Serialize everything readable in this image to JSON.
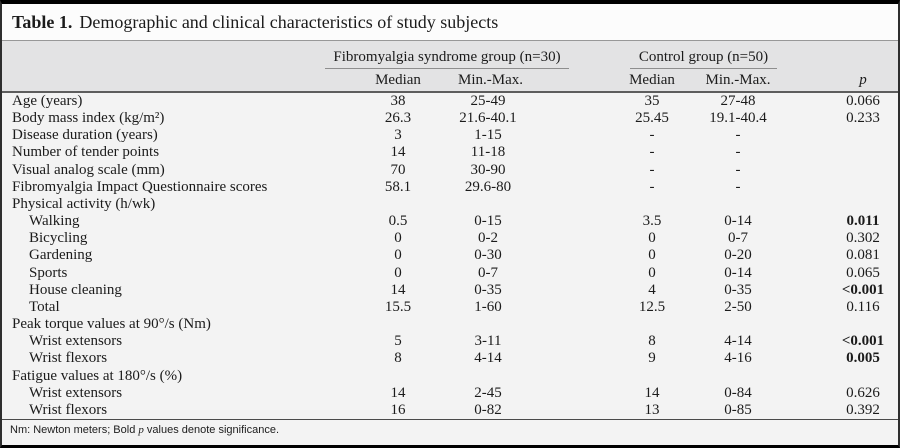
{
  "title": {
    "label": "Table 1.",
    "text": "Demographic and clinical characteristics of study subjects"
  },
  "header": {
    "group1": "Fibromyalgia syndrome group (n=30)",
    "group2": "Control group (n=50)",
    "sub": {
      "fms_median": "Median",
      "fms_minmax": "Min.-Max.",
      "ctrl_median": "Median",
      "ctrl_minmax": "Min.-Max.",
      "p": "p"
    }
  },
  "table": {
    "rows": [
      {
        "label": "Age (years)",
        "indent": false,
        "section": false,
        "fms_median": "38",
        "fms_minmax": "25-49",
        "ctrl_median": "35",
        "ctrl_minmax": "27-48",
        "p": "0.066",
        "p_bold": false
      },
      {
        "label": "Body mass index (kg/m²)",
        "indent": false,
        "section": false,
        "fms_median": "26.3",
        "fms_minmax": "21.6-40.1",
        "ctrl_median": "25.45",
        "ctrl_minmax": "19.1-40.4",
        "p": "0.233",
        "p_bold": false
      },
      {
        "label": "Disease duration (years)",
        "indent": false,
        "section": false,
        "fms_median": "3",
        "fms_minmax": "1-15",
        "ctrl_median": "-",
        "ctrl_minmax": "-",
        "p": "",
        "p_bold": false
      },
      {
        "label": "Number of tender points",
        "indent": false,
        "section": false,
        "fms_median": "14",
        "fms_minmax": "11-18",
        "ctrl_median": "-",
        "ctrl_minmax": "-",
        "p": "",
        "p_bold": false
      },
      {
        "label": "Visual analog scale (mm)",
        "indent": false,
        "section": false,
        "fms_median": "70",
        "fms_minmax": "30-90",
        "ctrl_median": "-",
        "ctrl_minmax": "-",
        "p": "",
        "p_bold": false
      },
      {
        "label": "Fibromyalgia Impact Questionnaire scores",
        "indent": false,
        "section": false,
        "fms_median": "58.1",
        "fms_minmax": "29.6-80",
        "ctrl_median": "-",
        "ctrl_minmax": "-",
        "p": "",
        "p_bold": false
      },
      {
        "label": "Physical activity (h/wk)",
        "indent": false,
        "section": true,
        "fms_median": "",
        "fms_minmax": "",
        "ctrl_median": "",
        "ctrl_minmax": "",
        "p": "",
        "p_bold": false
      },
      {
        "label": "Walking",
        "indent": true,
        "section": false,
        "fms_median": "0.5",
        "fms_minmax": "0-15",
        "ctrl_median": "3.5",
        "ctrl_minmax": "0-14",
        "p": "0.011",
        "p_bold": true
      },
      {
        "label": "Bicycling",
        "indent": true,
        "section": false,
        "fms_median": "0",
        "fms_minmax": "0-2",
        "ctrl_median": "0",
        "ctrl_minmax": "0-7",
        "p": "0.302",
        "p_bold": false
      },
      {
        "label": "Gardening",
        "indent": true,
        "section": false,
        "fms_median": "0",
        "fms_minmax": "0-30",
        "ctrl_median": "0",
        "ctrl_minmax": "0-20",
        "p": "0.081",
        "p_bold": false
      },
      {
        "label": "Sports",
        "indent": true,
        "section": false,
        "fms_median": "0",
        "fms_minmax": "0-7",
        "ctrl_median": "0",
        "ctrl_minmax": "0-14",
        "p": "0.065",
        "p_bold": false
      },
      {
        "label": "House cleaning",
        "indent": true,
        "section": false,
        "fms_median": "14",
        "fms_minmax": "0-35",
        "ctrl_median": "4",
        "ctrl_minmax": "0-35",
        "p": "<0.001",
        "p_bold": true
      },
      {
        "label": "Total",
        "indent": true,
        "section": false,
        "fms_median": "15.5",
        "fms_minmax": "1-60",
        "ctrl_median": "12.5",
        "ctrl_minmax": "2-50",
        "p": "0.116",
        "p_bold": false
      },
      {
        "label": "Peak torque values at 90°/s (Nm)",
        "indent": false,
        "section": true,
        "fms_median": "",
        "fms_minmax": "",
        "ctrl_median": "",
        "ctrl_minmax": "",
        "p": "",
        "p_bold": false
      },
      {
        "label": "Wrist extensors",
        "indent": true,
        "section": false,
        "fms_median": "5",
        "fms_minmax": "3-11",
        "ctrl_median": "8",
        "ctrl_minmax": "4-14",
        "p": "<0.001",
        "p_bold": true
      },
      {
        "label": "Wrist flexors",
        "indent": true,
        "section": false,
        "fms_median": "8",
        "fms_minmax": "4-14",
        "ctrl_median": "9",
        "ctrl_minmax": "4-16",
        "p": "0.005",
        "p_bold": true
      },
      {
        "label": "Fatigue values at 180°/s (%)",
        "indent": false,
        "section": true,
        "fms_median": "",
        "fms_minmax": "",
        "ctrl_median": "",
        "ctrl_minmax": "",
        "p": "",
        "p_bold": false
      },
      {
        "label": "Wrist extensors",
        "indent": true,
        "section": false,
        "fms_median": "14",
        "fms_minmax": "2-45",
        "ctrl_median": "14",
        "ctrl_minmax": "0-84",
        "p": "0.626",
        "p_bold": false
      },
      {
        "label": "Wrist flexors",
        "indent": true,
        "section": false,
        "fms_median": "16",
        "fms_minmax": "0-82",
        "ctrl_median": "13",
        "ctrl_minmax": "0-85",
        "p": "0.392",
        "p_bold": false
      }
    ]
  },
  "footnote": {
    "prefix": "Nm: Newton meters; Bold ",
    "italic": "p",
    "suffix": " values denote significance."
  },
  "colors": {
    "header_band": "#e3e3e4",
    "body_bg": "#f3f3f3",
    "border": "#000000"
  }
}
